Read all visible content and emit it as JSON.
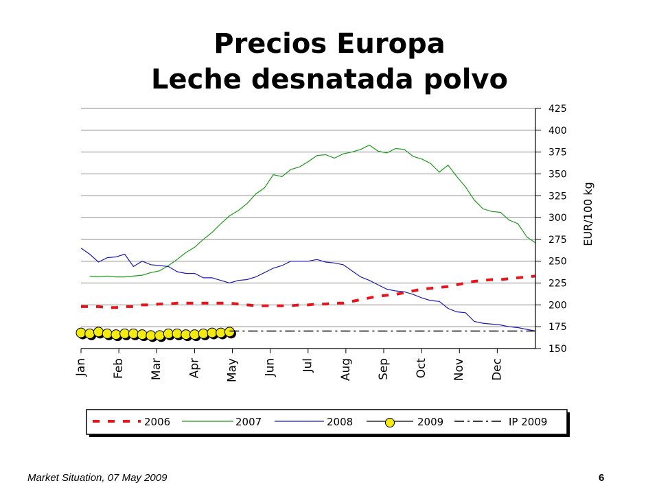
{
  "page": {
    "title_line1": "Precios Europa",
    "title_line2": "Leche desnatada polvo",
    "footer_left": "Market Situation, 07 May 2009",
    "page_number": "6"
  },
  "chart_data": {
    "type": "line",
    "title": "Precios Europa Leche desnatada polvo",
    "ylabel": "EUR/100 kg",
    "xlabel": "",
    "ylim": [
      150,
      425
    ],
    "yticks": [
      "150",
      "175",
      "200",
      "225",
      "250",
      "275",
      "300",
      "325",
      "350",
      "375",
      "400",
      "425"
    ],
    "categories": [
      "Jan",
      "Feb",
      "Mar",
      "Apr",
      "May",
      "Jun",
      "Jul",
      "Aug",
      "Sep",
      "Oct",
      "Nov",
      "Dec"
    ],
    "xlim": [
      1,
      53
    ],
    "grid": true,
    "legend_position": "bottom",
    "series": [
      {
        "name": "2006",
        "color": "#e8141c",
        "style": "dashed",
        "x": [
          1,
          2,
          3,
          4,
          5,
          6,
          7,
          8,
          9,
          10,
          11,
          12,
          13,
          14,
          15,
          16,
          17,
          18,
          19,
          20,
          21,
          22,
          23,
          24,
          25,
          26,
          27,
          28,
          29,
          30,
          31,
          32,
          33,
          34,
          35,
          36,
          37,
          38,
          39,
          40,
          41,
          42,
          43,
          44,
          45,
          46,
          47,
          48,
          49,
          50,
          51,
          52,
          53
        ],
        "values": [
          198,
          198,
          198,
          197,
          197,
          198,
          198,
          200,
          200,
          201,
          201,
          202,
          202,
          202,
          202,
          202,
          202,
          202,
          201,
          200,
          199,
          199,
          199,
          199,
          199,
          200,
          200,
          201,
          201,
          202,
          202,
          204,
          206,
          208,
          210,
          211,
          212,
          214,
          216,
          218,
          219,
          220,
          221,
          223,
          225,
          227,
          228,
          229,
          229,
          230,
          231,
          232,
          233
        ]
      },
      {
        "name": "2007",
        "color": "#1a9a1a",
        "style": "solid",
        "x": [
          2,
          3,
          4,
          5,
          6,
          7,
          8,
          9,
          10,
          11,
          12,
          13,
          14,
          15,
          16,
          17,
          18,
          19,
          20,
          21,
          22,
          23,
          24,
          25,
          26,
          27,
          28,
          29,
          30,
          31,
          32,
          33,
          34,
          35,
          36,
          37,
          38,
          39,
          40,
          41,
          42,
          43,
          44,
          45,
          46,
          47,
          48,
          49,
          50,
          51,
          52,
          53
        ],
        "values": [
          233,
          232,
          233,
          232,
          232,
          233,
          234,
          237,
          239,
          245,
          252,
          260,
          266,
          275,
          283,
          293,
          302,
          308,
          316,
          327,
          334,
          349,
          347,
          355,
          358,
          364,
          371,
          372,
          368,
          373,
          375,
          378,
          383,
          376,
          374,
          379,
          378,
          370,
          367,
          362,
          352,
          360,
          347,
          335,
          320,
          310,
          307,
          306,
          297,
          293,
          278,
          271
        ]
      },
      {
        "name": "2008",
        "color": "#1a1ab4",
        "style": "solid",
        "x": [
          1,
          2,
          3,
          4,
          5,
          6,
          7,
          8,
          9,
          10,
          11,
          12,
          13,
          14,
          15,
          16,
          17,
          18,
          19,
          20,
          21,
          22,
          23,
          24,
          25,
          26,
          27,
          28,
          29,
          30,
          31,
          32,
          33,
          34,
          35,
          36,
          37,
          38,
          39,
          40,
          41,
          42,
          43,
          44,
          45,
          46,
          47,
          48,
          49,
          50,
          51,
          52,
          53
        ],
        "values": [
          265,
          258,
          249,
          254,
          255,
          258,
          244,
          250,
          246,
          245,
          244,
          238,
          236,
          236,
          231,
          231,
          228,
          225,
          228,
          229,
          232,
          237,
          242,
          245,
          250,
          250,
          250,
          252,
          249,
          248,
          246,
          239,
          232,
          228,
          223,
          218,
          216,
          215,
          212,
          208,
          205,
          204,
          196,
          192,
          191,
          181,
          179,
          178,
          177,
          175,
          174,
          172,
          170
        ]
      },
      {
        "name": "2009",
        "color": "#f2ea10",
        "style": "markers",
        "x": [
          1,
          2,
          3,
          4,
          5,
          6,
          7,
          8,
          9,
          10,
          11,
          12,
          13,
          14,
          15,
          16,
          17,
          18
        ],
        "values": [
          168,
          167,
          169,
          167,
          166,
          167,
          167,
          166,
          165,
          165,
          167,
          167,
          166,
          166,
          167,
          168,
          168,
          169
        ]
      },
      {
        "name": "IP 2009",
        "color": "#000000",
        "style": "dashdot",
        "x": [
          18,
          53
        ],
        "values": [
          170,
          170
        ]
      }
    ]
  }
}
